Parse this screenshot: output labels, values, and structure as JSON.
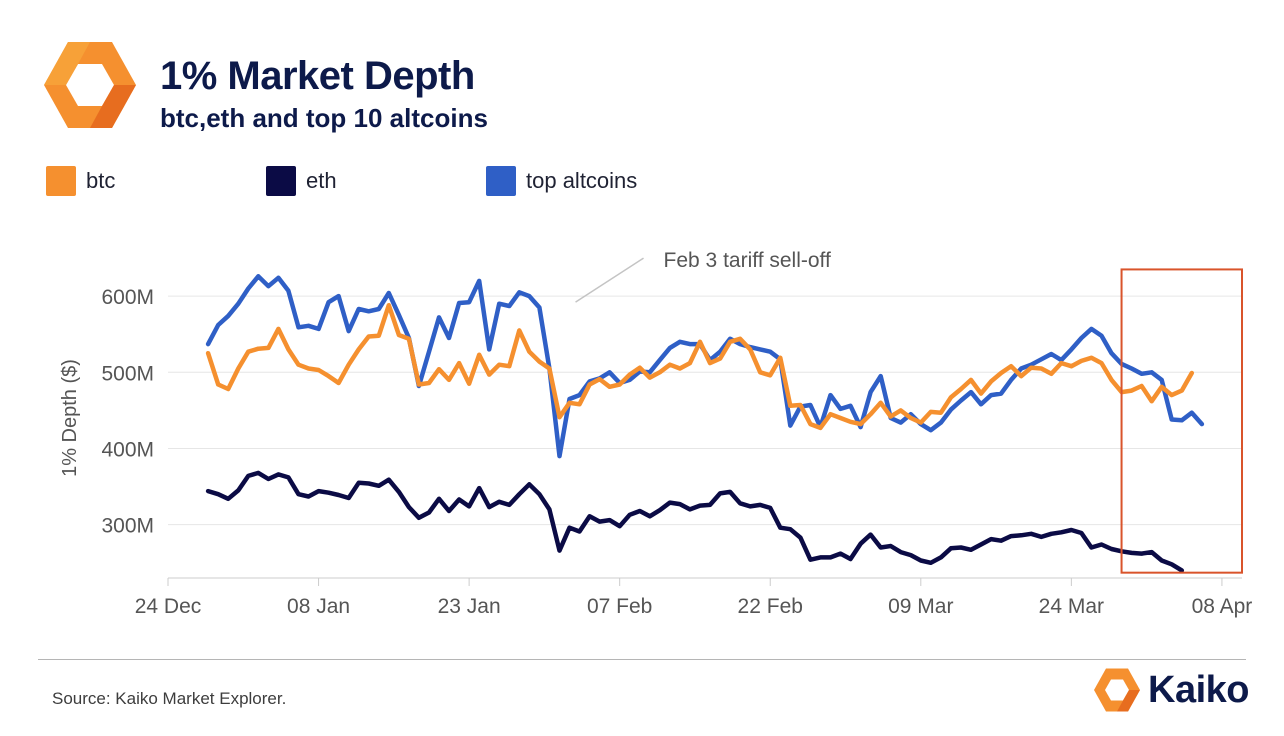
{
  "header": {
    "title": "1% Market Depth",
    "subtitle": "btc,eth and top 10 altcoins"
  },
  "legend": [
    {
      "label": "btc",
      "color": "#F5902F"
    },
    {
      "label": "eth",
      "color": "#0B0B45"
    },
    {
      "label": "top altcoins",
      "color": "#2F5FC6"
    }
  ],
  "footer": {
    "source": "Source: Kaiko Market Explorer.",
    "brand": "Kaiko"
  },
  "colors": {
    "brand_orange": "#F5902F",
    "brand_navy": "#0D1A4A",
    "highlight_box": "#D9542B",
    "grid": "#e6e6e6",
    "axis_text": "#555555"
  },
  "chart_data": {
    "type": "line",
    "title": "1% Market Depth",
    "subtitle": "btc,eth and top 10 altcoins",
    "ylabel": "1% Depth ($)",
    "xlabel": "",
    "x_start": "2024-12-28",
    "ylim": [
      230,
      650
    ],
    "y_ticks": [
      300,
      400,
      500,
      600
    ],
    "y_tick_labels": [
      "300M",
      "400M",
      "500M",
      "600M"
    ],
    "x_ticks": [
      "2024-12-24",
      "2025-01-08",
      "2025-01-23",
      "2025-02-07",
      "2025-02-22",
      "2025-03-09",
      "2025-03-24",
      "2025-04-08"
    ],
    "x_tick_labels": [
      "24 Dec",
      "08 Jan",
      "23 Jan",
      "07 Feb",
      "22 Feb",
      "09 Mar",
      "24 Mar",
      "08 Apr"
    ],
    "grid": "horizontal",
    "annotation": {
      "text": "Feb 3 tariff sell-off",
      "date": "2025-02-03",
      "value": 600
    },
    "highlight": {
      "from": "2025-03-29",
      "to": "2025-04-10"
    },
    "units": "USD millions",
    "series": [
      {
        "name": "btc",
        "color": "#F5902F",
        "values": [
          [
            0,
            525
          ],
          [
            1,
            484
          ],
          [
            2,
            478
          ],
          [
            3,
            505
          ],
          [
            4,
            527
          ],
          [
            5,
            531
          ],
          [
            6,
            532
          ],
          [
            7,
            557
          ],
          [
            8,
            530
          ],
          [
            9,
            510
          ],
          [
            10,
            505
          ],
          [
            11,
            503
          ],
          [
            12,
            495
          ],
          [
            13,
            486
          ],
          [
            14,
            510
          ],
          [
            15,
            530
          ],
          [
            16,
            547
          ],
          [
            17,
            548
          ],
          [
            18,
            588
          ],
          [
            19,
            549
          ],
          [
            20,
            544
          ],
          [
            21,
            484
          ],
          [
            22,
            486
          ],
          [
            23,
            504
          ],
          [
            24,
            490
          ],
          [
            25,
            512
          ],
          [
            26,
            485
          ],
          [
            27,
            523
          ],
          [
            28,
            497
          ],
          [
            29,
            510
          ],
          [
            30,
            508
          ],
          [
            31,
            555
          ],
          [
            32,
            527
          ],
          [
            33,
            514
          ],
          [
            34,
            505
          ],
          [
            35,
            441
          ],
          [
            36,
            460
          ],
          [
            37,
            458
          ],
          [
            38,
            484
          ],
          [
            39,
            491
          ],
          [
            40,
            481
          ],
          [
            41,
            484
          ],
          [
            42,
            497
          ],
          [
            43,
            506
          ],
          [
            44,
            493
          ],
          [
            45,
            500
          ],
          [
            46,
            510
          ],
          [
            47,
            505
          ],
          [
            48,
            512
          ],
          [
            49,
            540
          ],
          [
            50,
            512
          ],
          [
            51,
            518
          ],
          [
            52,
            540
          ],
          [
            53,
            544
          ],
          [
            54,
            530
          ],
          [
            55,
            500
          ],
          [
            56,
            496
          ],
          [
            57,
            519
          ],
          [
            58,
            456
          ],
          [
            59,
            457
          ],
          [
            60,
            432
          ],
          [
            61,
            427
          ],
          [
            62,
            445
          ],
          [
            63,
            440
          ],
          [
            64,
            435
          ],
          [
            65,
            432
          ],
          [
            66,
            445
          ],
          [
            67,
            460
          ],
          [
            68,
            442
          ],
          [
            69,
            450
          ],
          [
            70,
            440
          ],
          [
            71,
            434
          ],
          [
            72,
            448
          ],
          [
            73,
            447
          ],
          [
            74,
            467
          ],
          [
            75,
            478
          ],
          [
            76,
            490
          ],
          [
            77,
            472
          ],
          [
            78,
            488
          ],
          [
            79,
            499
          ],
          [
            80,
            508
          ],
          [
            81,
            495
          ],
          [
            82,
            506
          ],
          [
            83,
            505
          ],
          [
            84,
            498
          ],
          [
            85,
            512
          ],
          [
            86,
            508
          ],
          [
            87,
            515
          ],
          [
            88,
            519
          ],
          [
            89,
            512
          ],
          [
            90,
            490
          ],
          [
            91,
            474
          ],
          [
            92,
            476
          ],
          [
            93,
            482
          ],
          [
            94,
            462
          ],
          [
            95,
            481
          ],
          [
            96,
            470
          ],
          [
            97,
            476
          ],
          [
            98,
            499
          ]
        ]
      },
      {
        "name": "eth",
        "color": "#0B0B45",
        "values": [
          [
            0,
            344
          ],
          [
            1,
            340
          ],
          [
            2,
            334
          ],
          [
            3,
            345
          ],
          [
            4,
            364
          ],
          [
            5,
            368
          ],
          [
            6,
            360
          ],
          [
            7,
            366
          ],
          [
            8,
            362
          ],
          [
            9,
            340
          ],
          [
            10,
            337
          ],
          [
            11,
            344
          ],
          [
            12,
            342
          ],
          [
            13,
            339
          ],
          [
            14,
            335
          ],
          [
            15,
            355
          ],
          [
            16,
            354
          ],
          [
            17,
            351
          ],
          [
            18,
            359
          ],
          [
            19,
            343
          ],
          [
            20,
            323
          ],
          [
            21,
            309
          ],
          [
            22,
            316
          ],
          [
            23,
            334
          ],
          [
            24,
            318
          ],
          [
            25,
            333
          ],
          [
            26,
            324
          ],
          [
            27,
            348
          ],
          [
            28,
            323
          ],
          [
            29,
            330
          ],
          [
            30,
            326
          ],
          [
            31,
            340
          ],
          [
            32,
            353
          ],
          [
            33,
            340
          ],
          [
            34,
            320
          ],
          [
            35,
            266
          ],
          [
            36,
            296
          ],
          [
            37,
            291
          ],
          [
            38,
            311
          ],
          [
            39,
            304
          ],
          [
            40,
            306
          ],
          [
            41,
            298
          ],
          [
            42,
            313
          ],
          [
            43,
            318
          ],
          [
            44,
            311
          ],
          [
            45,
            319
          ],
          [
            46,
            329
          ],
          [
            47,
            327
          ],
          [
            48,
            320
          ],
          [
            49,
            325
          ],
          [
            50,
            326
          ],
          [
            51,
            341
          ],
          [
            52,
            343
          ],
          [
            53,
            328
          ],
          [
            54,
            324
          ],
          [
            55,
            326
          ],
          [
            56,
            322
          ],
          [
            57,
            296
          ],
          [
            58,
            294
          ],
          [
            59,
            283
          ],
          [
            60,
            254
          ],
          [
            61,
            257
          ],
          [
            62,
            257
          ],
          [
            63,
            262
          ],
          [
            64,
            255
          ],
          [
            65,
            275
          ],
          [
            66,
            287
          ],
          [
            67,
            270
          ],
          [
            68,
            272
          ],
          [
            69,
            264
          ],
          [
            70,
            260
          ],
          [
            71,
            253
          ],
          [
            72,
            250
          ],
          [
            73,
            257
          ],
          [
            74,
            269
          ],
          [
            75,
            270
          ],
          [
            76,
            267
          ],
          [
            77,
            274
          ],
          [
            78,
            281
          ],
          [
            79,
            279
          ],
          [
            80,
            285
          ],
          [
            81,
            286
          ],
          [
            82,
            288
          ],
          [
            83,
            284
          ],
          [
            84,
            288
          ],
          [
            85,
            290
          ],
          [
            86,
            293
          ],
          [
            87,
            289
          ],
          [
            88,
            270
          ],
          [
            89,
            274
          ],
          [
            90,
            268
          ],
          [
            91,
            265
          ],
          [
            92,
            263
          ],
          [
            93,
            262
          ],
          [
            94,
            264
          ],
          [
            95,
            253
          ],
          [
            96,
            248
          ],
          [
            97,
            240
          ]
        ]
      },
      {
        "name": "top altcoins",
        "color": "#2F5FC6",
        "values": [
          [
            0,
            537
          ],
          [
            1,
            562
          ],
          [
            2,
            574
          ],
          [
            3,
            590
          ],
          [
            4,
            610
          ],
          [
            5,
            626
          ],
          [
            6,
            613
          ],
          [
            7,
            624
          ],
          [
            8,
            607
          ],
          [
            9,
            559
          ],
          [
            10,
            561
          ],
          [
            11,
            557
          ],
          [
            12,
            592
          ],
          [
            13,
            600
          ],
          [
            14,
            554
          ],
          [
            15,
            583
          ],
          [
            16,
            580
          ],
          [
            17,
            583
          ],
          [
            18,
            604
          ],
          [
            19,
            575
          ],
          [
            20,
            545
          ],
          [
            21,
            482
          ],
          [
            22,
            527
          ],
          [
            23,
            572
          ],
          [
            24,
            545
          ],
          [
            25,
            591
          ],
          [
            26,
            592
          ],
          [
            27,
            620
          ],
          [
            28,
            530
          ],
          [
            29,
            590
          ],
          [
            30,
            587
          ],
          [
            31,
            605
          ],
          [
            32,
            600
          ],
          [
            33,
            585
          ],
          [
            34,
            505
          ],
          [
            35,
            390
          ],
          [
            36,
            465
          ],
          [
            37,
            470
          ],
          [
            38,
            488
          ],
          [
            39,
            492
          ],
          [
            40,
            500
          ],
          [
            41,
            486
          ],
          [
            42,
            490
          ],
          [
            43,
            501
          ],
          [
            44,
            500
          ],
          [
            45,
            516
          ],
          [
            46,
            532
          ],
          [
            47,
            540
          ],
          [
            48,
            537
          ],
          [
            49,
            537
          ],
          [
            50,
            516
          ],
          [
            51,
            527
          ],
          [
            52,
            544
          ],
          [
            53,
            537
          ],
          [
            54,
            533
          ],
          [
            55,
            530
          ],
          [
            56,
            527
          ],
          [
            57,
            517
          ],
          [
            58,
            430
          ],
          [
            59,
            455
          ],
          [
            60,
            457
          ],
          [
            61,
            428
          ],
          [
            62,
            470
          ],
          [
            63,
            452
          ],
          [
            64,
            456
          ],
          [
            65,
            428
          ],
          [
            66,
            474
          ],
          [
            67,
            495
          ],
          [
            68,
            440
          ],
          [
            69,
            434
          ],
          [
            70,
            445
          ],
          [
            71,
            432
          ],
          [
            72,
            424
          ],
          [
            73,
            434
          ],
          [
            74,
            451
          ],
          [
            75,
            463
          ],
          [
            76,
            474
          ],
          [
            77,
            458
          ],
          [
            78,
            470
          ],
          [
            79,
            472
          ],
          [
            80,
            490
          ],
          [
            81,
            505
          ],
          [
            82,
            510
          ],
          [
            83,
            517
          ],
          [
            84,
            524
          ],
          [
            85,
            516
          ],
          [
            86,
            530
          ],
          [
            87,
            545
          ],
          [
            88,
            557
          ],
          [
            89,
            548
          ],
          [
            90,
            525
          ],
          [
            91,
            511
          ],
          [
            92,
            505
          ],
          [
            93,
            498
          ],
          [
            94,
            500
          ],
          [
            95,
            490
          ],
          [
            96,
            438
          ],
          [
            97,
            437
          ],
          [
            98,
            447
          ],
          [
            99,
            432
          ]
        ]
      }
    ]
  }
}
